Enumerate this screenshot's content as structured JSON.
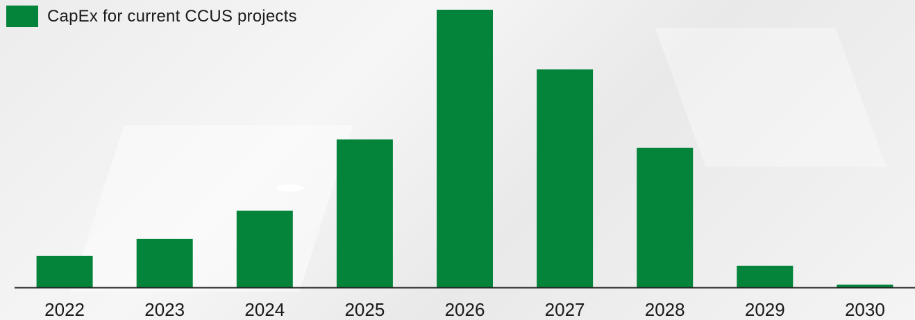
{
  "chart_data": {
    "type": "bar",
    "categories": [
      "2022",
      "2023",
      "2024",
      "2025",
      "2026",
      "2027",
      "2028",
      "2029",
      "2030"
    ],
    "series": [
      {
        "name": "CapEx for current CCUS projects",
        "values": [
          11.3,
          17.5,
          27.6,
          53.3,
          100,
          78.5,
          50.3,
          7.8,
          1.0
        ],
        "color": "#04843b"
      }
    ],
    "ylim": [
      0,
      100
    ],
    "grid": false,
    "legend": "top-left"
  }
}
